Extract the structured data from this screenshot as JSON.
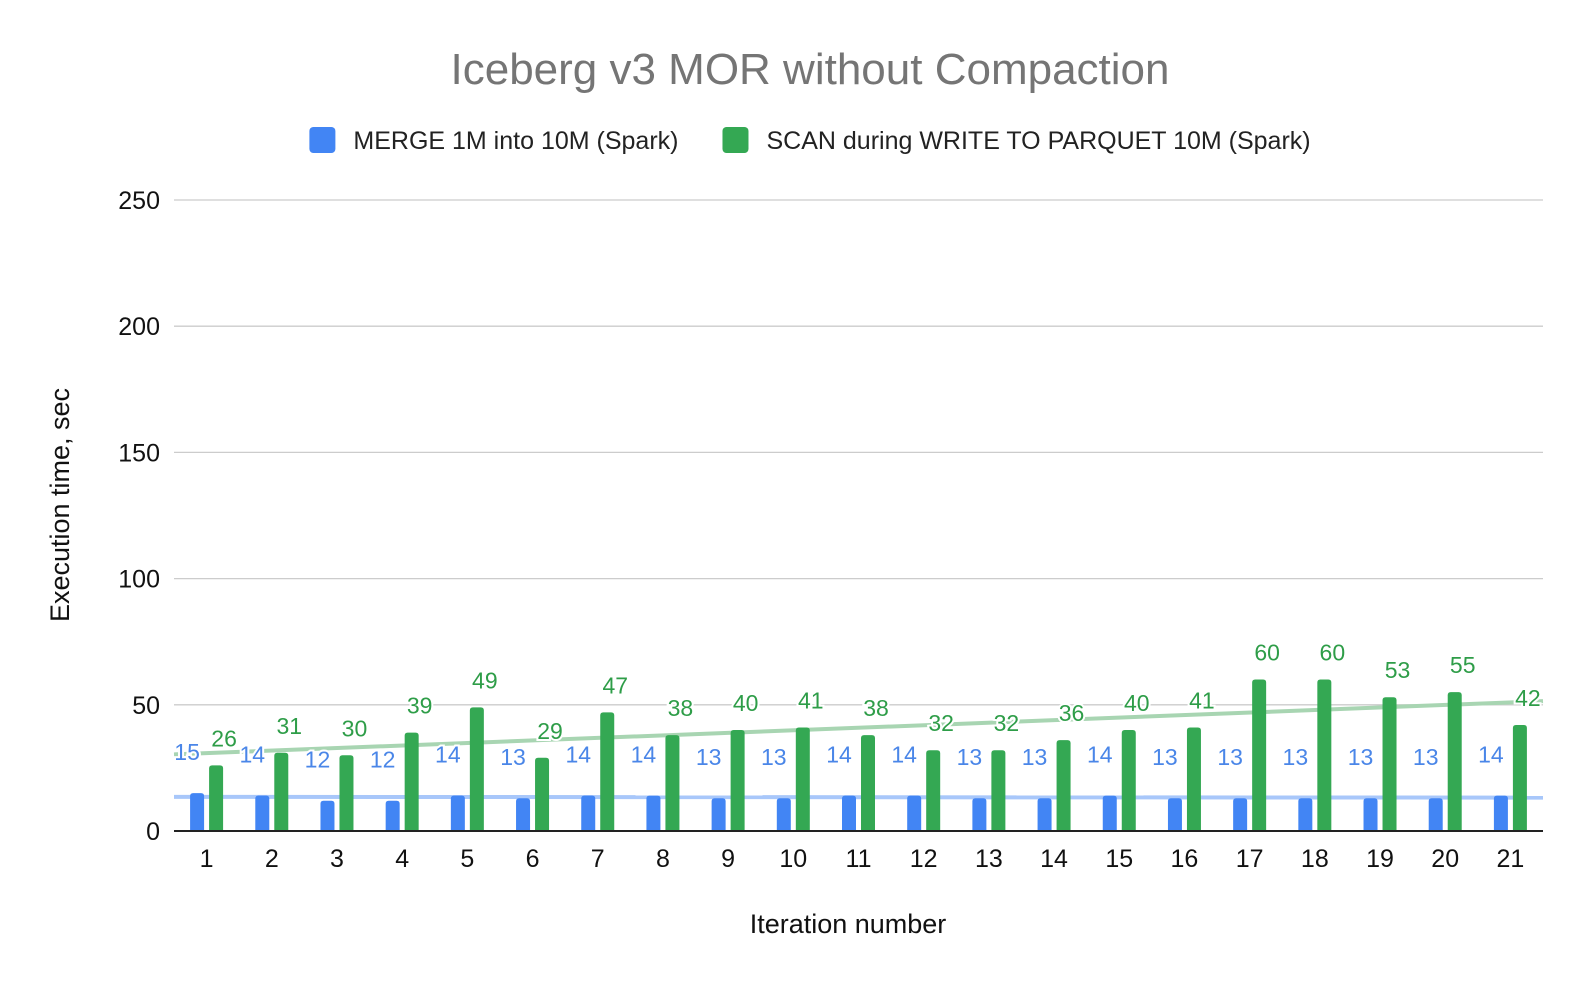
{
  "chart_data": {
    "type": "bar",
    "title": "Iceberg v3 MOR without Compaction",
    "xlabel": "Iteration number",
    "ylabel": "Execution time, sec",
    "ylim": [
      0,
      250
    ],
    "yticks": [
      0,
      50,
      100,
      150,
      200,
      250
    ],
    "grid": true,
    "legend_position": "top",
    "categories": [
      "1",
      "2",
      "3",
      "4",
      "5",
      "6",
      "7",
      "8",
      "9",
      "10",
      "11",
      "12",
      "13",
      "14",
      "15",
      "16",
      "17",
      "18",
      "19",
      "20",
      "21"
    ],
    "series": [
      {
        "name": "MERGE 1M into 10M (Spark)",
        "color": "#4285f4",
        "label_color": "#4a86e8",
        "trendline_color": "#a8c7fa",
        "values": [
          15,
          14,
          12,
          12,
          14,
          13,
          14,
          14,
          13,
          13,
          14,
          14,
          13,
          13,
          14,
          13,
          13,
          13,
          13,
          13,
          14
        ]
      },
      {
        "name": "SCAN during WRITE TO PARQUET 10M (Spark)",
        "color": "#34a853",
        "label_color": "#2e9d48",
        "trendline_color": "#a8d5b2",
        "values": [
          26,
          31,
          30,
          39,
          49,
          29,
          47,
          38,
          40,
          41,
          38,
          32,
          32,
          36,
          40,
          41,
          60,
          60,
          53,
          55,
          42
        ]
      }
    ],
    "trendlines": true
  }
}
